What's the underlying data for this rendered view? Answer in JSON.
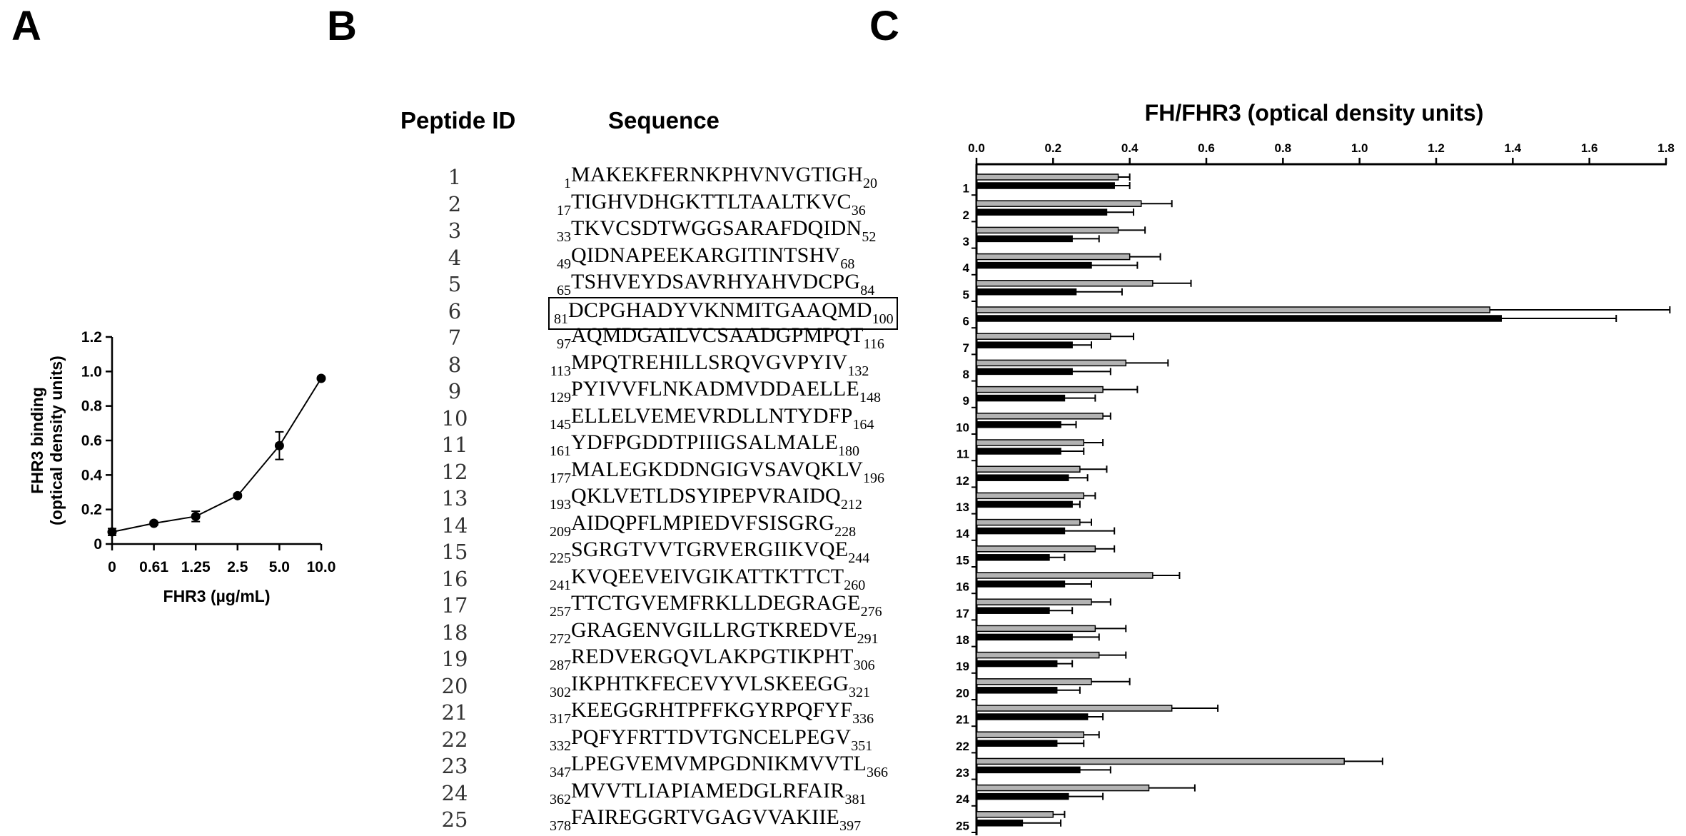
{
  "panels": {
    "a": "A",
    "b": "B",
    "c": "C"
  },
  "panel_b": {
    "header_id": "Peptide ID",
    "header_seq": "Sequence",
    "highlighted_id": "6",
    "peptides": [
      {
        "id": "1",
        "start": "1",
        "seq": "MAKEKFERNKPHVNVGTIGH",
        "end": "20"
      },
      {
        "id": "2",
        "start": "17",
        "seq": "TIGHVDHGKTTLTAALTKVC",
        "end": "36"
      },
      {
        "id": "3",
        "start": "33",
        "seq": "TKVCSDTWGGSARAFDQIDN",
        "end": "52"
      },
      {
        "id": "4",
        "start": "49",
        "seq": "QIDNAPEEKARGITINTSHV",
        "end": "68"
      },
      {
        "id": "5",
        "start": "65",
        "seq": "TSHVEYDSAVRHYAHVDCPG",
        "end": "84"
      },
      {
        "id": "6",
        "start": "81",
        "seq": "DCPGHADYVKNMITGAAQMD",
        "end": "100"
      },
      {
        "id": "7",
        "start": "97",
        "seq": "AQMDGAILVCSAADGPMPQT",
        "end": "116"
      },
      {
        "id": "8",
        "start": "113",
        "seq": "MPQTREHILLSRQVGVPYIV",
        "end": "132"
      },
      {
        "id": "9",
        "start": "129",
        "seq": "PYIVVFLNKADMVDDAELLE",
        "end": "148"
      },
      {
        "id": "10",
        "start": "145",
        "seq": "ELLELVEMEVRDLLNTYDFP",
        "end": "164"
      },
      {
        "id": "11",
        "start": "161",
        "seq": "YDFPGDDTPIIIGSALMALE",
        "end": "180"
      },
      {
        "id": "12",
        "start": "177",
        "seq": "MALEGKDDNGIGVSAVQKLV",
        "end": "196"
      },
      {
        "id": "13",
        "start": "193",
        "seq": "QKLVETLDSYIPEPVRAIDQ",
        "end": "212"
      },
      {
        "id": "14",
        "start": "209",
        "seq": "AIDQPFLMPIEDVFSISGRG",
        "end": "228"
      },
      {
        "id": "15",
        "start": "225",
        "seq": "SGRGTVVTGRVERGIIKVQE",
        "end": "244"
      },
      {
        "id": "16",
        "start": "241",
        "seq": "KVQEEVEIVGIKATTKTTCT",
        "end": "260"
      },
      {
        "id": "17",
        "start": "257",
        "seq": "TTCTGVEMFRKLLDEGRAGE",
        "end": "276"
      },
      {
        "id": "18",
        "start": "272",
        "seq": "GRAGENVGILLRGTKREDVE",
        "end": "291"
      },
      {
        "id": "19",
        "start": "287",
        "seq": "REDVERGQVLAKPGTIKPHT",
        "end": "306"
      },
      {
        "id": "20",
        "start": "302",
        "seq": "IKPHTKFECEVYVLSKEEGG",
        "end": "321"
      },
      {
        "id": "21",
        "start": "317",
        "seq": "KEEGGRHTPFFKGYRPQFYF",
        "end": "336"
      },
      {
        "id": "22",
        "start": "332",
        "seq": "PQFYFRTTDVTGNCELPEGV",
        "end": "351"
      },
      {
        "id": "23",
        "start": "347",
        "seq": "LPEGVEMVMPGDNIKMVVTL",
        "end": "366"
      },
      {
        "id": "24",
        "start": "362",
        "seq": "MVVTLIAPIAMEDGLRFAIR",
        "end": "381"
      },
      {
        "id": "25",
        "start": "378",
        "seq": "FAIREGGRTVGAGVVAKIIE",
        "end": "397"
      }
    ]
  },
  "chart_data": [
    {
      "type": "line",
      "xlabel": "FHR3 (µg/mL)",
      "ylabel": "FHR3 binding\n(optical density units)",
      "x": [
        "0",
        "0.61",
        "1.25",
        "2.5",
        "5.0",
        "10.0"
      ],
      "y": [
        0.07,
        0.12,
        0.16,
        0.28,
        0.57,
        0.96
      ],
      "error": [
        0.02,
        0.01,
        0.03,
        0.01,
        0.08,
        0.0
      ],
      "ylim": [
        0,
        1.2
      ],
      "yticks": [
        "0",
        "0.2",
        "0.4",
        "0.6",
        "0.8",
        "1.0",
        "1.2"
      ],
      "marker": "circle",
      "color": "#000000"
    },
    {
      "type": "bar",
      "orientation": "horizontal",
      "title": "FH/FHR3 (optical density units)",
      "categories": [
        "1",
        "2",
        "3",
        "4",
        "5",
        "6",
        "7",
        "8",
        "9",
        "10",
        "11",
        "12",
        "13",
        "14",
        "15",
        "16",
        "17",
        "18",
        "19",
        "20",
        "21",
        "22",
        "23",
        "24",
        "25"
      ],
      "xlim": [
        0,
        1.8
      ],
      "xticks": [
        "0.0",
        "0.2",
        "0.4",
        "0.6",
        "0.8",
        "1.0",
        "1.2",
        "1.4",
        "1.6",
        "1.8"
      ],
      "series": [
        {
          "color": "#b3b3b3",
          "values": [
            0.37,
            0.43,
            0.37,
            0.4,
            0.46,
            1.34,
            0.35,
            0.39,
            0.33,
            0.33,
            0.28,
            0.27,
            0.28,
            0.27,
            0.31,
            0.46,
            0.3,
            0.31,
            0.32,
            0.3,
            0.51,
            0.28,
            0.96,
            0.45,
            0.2
          ],
          "error": [
            0.03,
            0.08,
            0.07,
            0.08,
            0.1,
            0.47,
            0.06,
            0.11,
            0.09,
            0.02,
            0.05,
            0.07,
            0.03,
            0.03,
            0.05,
            0.07,
            0.05,
            0.08,
            0.07,
            0.1,
            0.12,
            0.04,
            0.1,
            0.12,
            0.03
          ]
        },
        {
          "color": "#000000",
          "values": [
            0.36,
            0.34,
            0.25,
            0.3,
            0.26,
            1.37,
            0.25,
            0.25,
            0.23,
            0.22,
            0.22,
            0.24,
            0.25,
            0.23,
            0.19,
            0.23,
            0.19,
            0.25,
            0.21,
            0.21,
            0.29,
            0.21,
            0.27,
            0.24,
            0.12
          ],
          "error": [
            0.04,
            0.07,
            0.07,
            0.12,
            0.12,
            0.3,
            0.05,
            0.1,
            0.08,
            0.04,
            0.06,
            0.05,
            0.02,
            0.13,
            0.04,
            0.07,
            0.06,
            0.07,
            0.04,
            0.06,
            0.04,
            0.07,
            0.08,
            0.09,
            0.1
          ]
        }
      ]
    }
  ]
}
